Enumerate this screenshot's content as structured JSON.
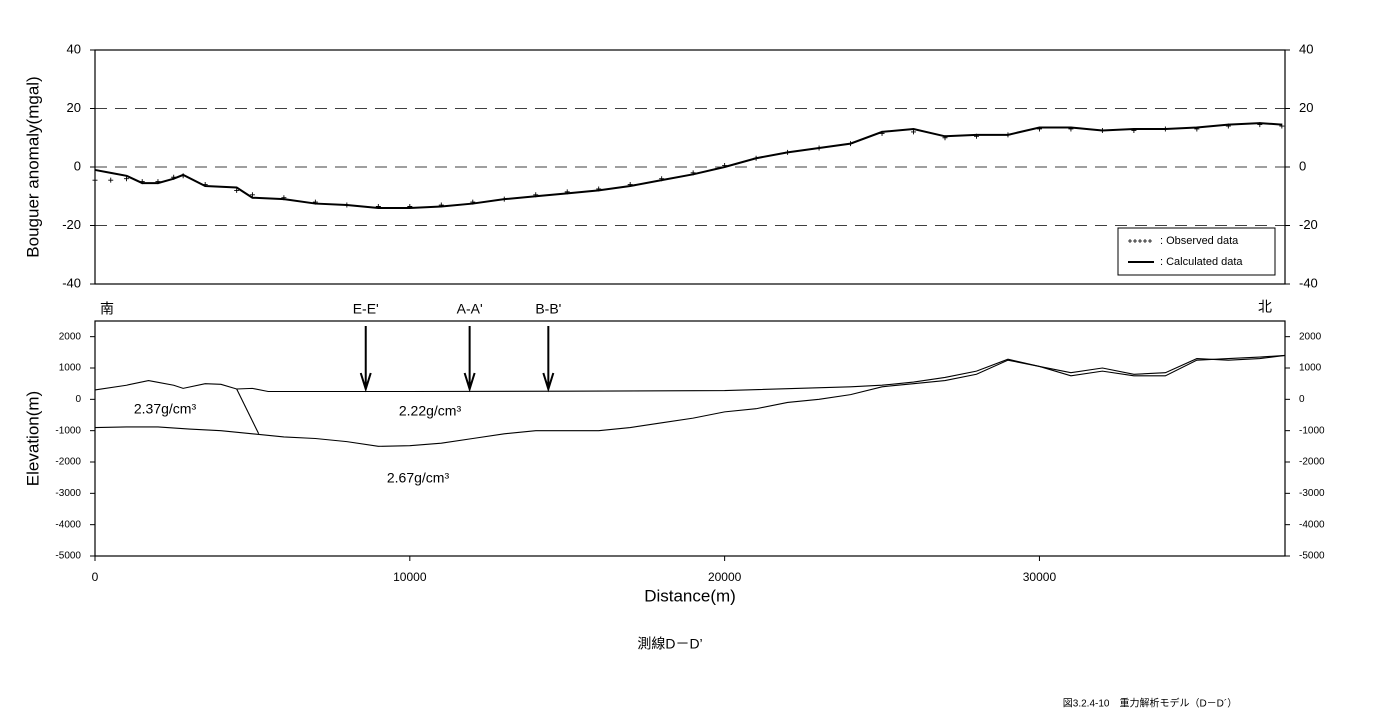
{
  "chart_data": [
    {
      "type": "line",
      "y_label": "Bouguer anomaly(mgal)",
      "xlim": [
        0,
        37800
      ],
      "ylim": [
        -40,
        40
      ],
      "yticks": [
        -40,
        -20,
        0,
        20,
        40
      ],
      "y2lim": [
        -40,
        40
      ],
      "y2ticks": [
        -40,
        -20,
        0,
        20,
        40
      ],
      "grid": true,
      "legend": "lower right",
      "series": [
        {
          "name": ": Observed data",
          "color": "#000000",
          "marker": "+",
          "x": [
            0,
            500,
            1000,
            1500,
            2000,
            2500,
            2800,
            3500,
            4500,
            5000,
            6000,
            7000,
            8000,
            9000,
            10000,
            11000,
            12000,
            13000,
            14000,
            15000,
            16000,
            17000,
            18000,
            19000,
            20000,
            21000,
            22000,
            23000,
            24000,
            25000,
            26000,
            27000,
            28000,
            29000,
            30000,
            31000,
            32000,
            33000,
            34000,
            35000,
            36000,
            37000,
            37700
          ],
          "values": [
            -4.5,
            -4.5,
            -4,
            -5,
            -5,
            -3.5,
            -3,
            -6,
            -8,
            -9.5,
            -10.5,
            -12,
            -13,
            -13.5,
            -13.5,
            -13,
            -12,
            -11,
            -9.5,
            -8.5,
            -7.5,
            -6,
            -4,
            -2,
            0.5,
            3,
            5,
            6.5,
            8,
            11.5,
            12,
            10,
            10.5,
            11,
            13,
            13,
            12.5,
            12.5,
            13,
            13,
            14,
            14.5,
            14
          ]
        },
        {
          "name": ": Calculated data",
          "color": "#000000",
          "x": [
            0,
            500,
            1000,
            1500,
            2000,
            2500,
            2800,
            3500,
            4500,
            5000,
            6000,
            7000,
            8000,
            9000,
            10000,
            11000,
            12000,
            13000,
            14000,
            15000,
            16000,
            17000,
            18000,
            19000,
            20000,
            21000,
            22000,
            23000,
            24000,
            25000,
            26000,
            27000,
            28000,
            29000,
            30000,
            31000,
            32000,
            33000,
            34000,
            35000,
            36000,
            37000,
            37700
          ],
          "values": [
            -1,
            -2,
            -3,
            -5.5,
            -5.5,
            -4,
            -2.7,
            -6.5,
            -7,
            -10.5,
            -11,
            -12.5,
            -13,
            -14,
            -14,
            -13.5,
            -12.5,
            -11,
            -10,
            -9,
            -8,
            -6.5,
            -4.5,
            -2.5,
            0,
            3,
            5,
            6.5,
            8,
            12,
            13,
            10.5,
            11,
            11,
            13.5,
            13.5,
            12.5,
            13,
            13,
            13.5,
            14.5,
            15,
            14.5
          ]
        }
      ]
    },
    {
      "type": "line",
      "x_label": "Distance(m)",
      "y_label": "Elevation(m)",
      "left_label": "南",
      "right_label": "北",
      "xlim": [
        0,
        37800
      ],
      "xticks": [
        0,
        10000,
        20000,
        30000
      ],
      "ylim": [
        -5000,
        2500
      ],
      "yticks": [
        -5000,
        -4000,
        -3000,
        -2000,
        -1000,
        0,
        1000,
        2000
      ],
      "y2lim": [
        -5000,
        2500
      ],
      "y2ticks": [
        -5000,
        -4000,
        -3000,
        -2000,
        -1000,
        0,
        1000,
        2000
      ],
      "annotations": [
        {
          "text": "E-E'",
          "x": 8600
        },
        {
          "text": "A-A'",
          "x": 11900
        },
        {
          "text": "B-B'",
          "x": 14400
        }
      ],
      "labels": [
        "2.37g/cm³",
        "2.22g/cm³",
        "2.67g/cm³"
      ],
      "series": [
        {
          "color": "#000000",
          "x": [
            0,
            1000,
            1700,
            2500,
            2800,
            3500,
            4000,
            4500,
            5000,
            5500,
            6000,
            10000,
            15000,
            20000,
            24000,
            25000,
            26000,
            27000,
            28000,
            29000,
            30000,
            31000,
            32000,
            33000,
            34000,
            35000,
            36000,
            37000,
            37800
          ],
          "values": [
            300,
            450,
            600,
            450,
            350,
            500,
            480,
            330,
            350,
            250,
            250,
            250,
            260,
            280,
            400,
            450,
            550,
            700,
            900,
            1280,
            1050,
            850,
            1000,
            800,
            850,
            1300,
            1250,
            1300,
            1400
          ]
        },
        {
          "color": "#000000",
          "x": [
            0,
            1000,
            2000,
            3000,
            4000,
            5000,
            6000,
            7000,
            8000,
            9000,
            10000,
            11000,
            12000,
            13000,
            14000,
            15000,
            16000,
            17000,
            18000,
            19000,
            20000,
            21000,
            22000,
            23000,
            24000,
            25000,
            26000,
            27000,
            28000,
            29000,
            30000,
            31000,
            32000,
            33000,
            34000,
            35000,
            36000,
            37000,
            37800
          ],
          "values": [
            -900,
            -880,
            -880,
            -950,
            -1000,
            -1100,
            -1200,
            -1250,
            -1350,
            -1500,
            -1480,
            -1400,
            -1250,
            -1100,
            -1000,
            -1000,
            -1000,
            -900,
            -750,
            -600,
            -400,
            -300,
            -100,
            0,
            150,
            400,
            500,
            600,
            800,
            1250,
            1050,
            750,
            900,
            750,
            750,
            1250,
            1300,
            1350,
            1400
          ]
        },
        {
          "color": "#000000",
          "x": [
            4500,
            5200
          ],
          "values": [
            330,
            -1100
          ]
        }
      ]
    }
  ],
  "title": "測線D－D’",
  "caption": "図3.2.4-10　重力解析モデル（D－D´）"
}
